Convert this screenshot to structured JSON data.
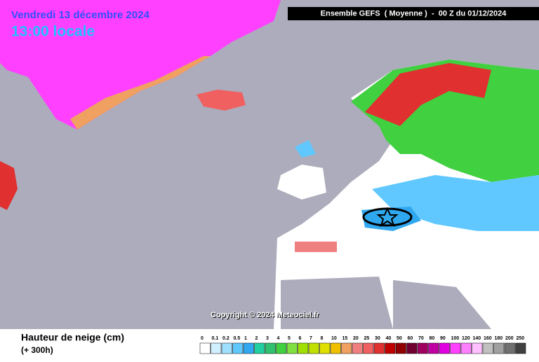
{
  "header": {
    "date": "Vendredi 13 décembre 2024",
    "time": "13:00 locale"
  },
  "run_title": "Ensemble GEFS  ( Moyenne )  -  00 Z du 01/12/2024",
  "copyright": "Copyright © 2024 Meteociel.fr",
  "legend": {
    "title": "Hauteur de neige (cm)",
    "subtitle": "(+ 300h)",
    "scale": [
      {
        "label": "0",
        "color": "#ffffff"
      },
      {
        "label": "0.1",
        "color": "#d0f0ff"
      },
      {
        "label": "0.2",
        "color": "#a0e0ff"
      },
      {
        "label": "0.5",
        "color": "#60c8ff"
      },
      {
        "label": "1",
        "color": "#30a8f0"
      },
      {
        "label": "2",
        "color": "#20d0a0"
      },
      {
        "label": "3",
        "color": "#30c070"
      },
      {
        "label": "4",
        "color": "#40d040"
      },
      {
        "label": "5",
        "color": "#80e040"
      },
      {
        "label": "6",
        "color": "#a0e000"
      },
      {
        "label": "7",
        "color": "#c0e000"
      },
      {
        "label": "8",
        "color": "#e0e000"
      },
      {
        "label": "10",
        "color": "#f0c000"
      },
      {
        "label": "15",
        "color": "#f0a060"
      },
      {
        "label": "20",
        "color": "#f08080"
      },
      {
        "label": "25",
        "color": "#f06060"
      },
      {
        "label": "30",
        "color": "#e03030"
      },
      {
        "label": "40",
        "color": "#c00000"
      },
      {
        "label": "50",
        "color": "#900000"
      },
      {
        "label": "60",
        "color": "#700030"
      },
      {
        "label": "70",
        "color": "#a00060"
      },
      {
        "label": "80",
        "color": "#c000a0"
      },
      {
        "label": "90",
        "color": "#e000e0"
      },
      {
        "label": "100",
        "color": "#ff40ff"
      },
      {
        "label": "120",
        "color": "#ff80ff"
      },
      {
        "label": "140",
        "color": "#ffc0ff"
      },
      {
        "label": "160",
        "color": "#c0c0c0"
      },
      {
        "label": "180",
        "color": "#a0a0a0"
      },
      {
        "label": "200",
        "color": "#707070"
      },
      {
        "label": "250",
        "color": "#404040"
      }
    ]
  }
}
